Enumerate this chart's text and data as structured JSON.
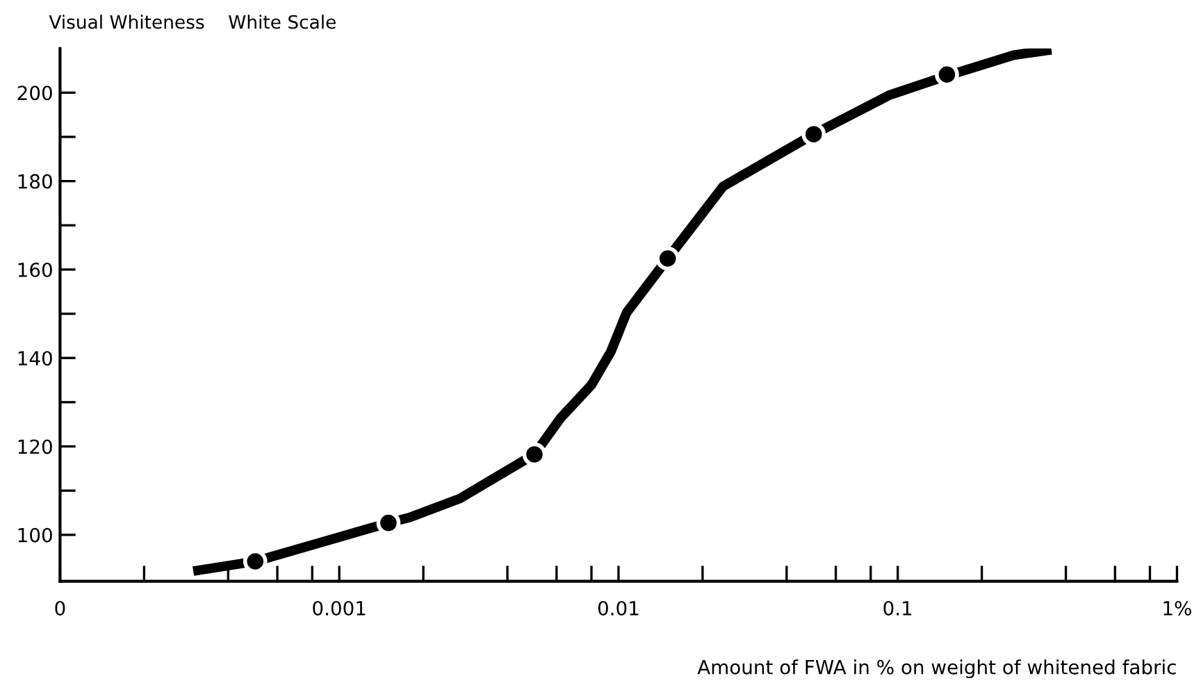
{
  "chart_data": {
    "type": "line",
    "ylabel": "Visual Whiteness    White Scale",
    "xlabel": "Amount of FWA in % on weight of whitened fabric",
    "log": "x",
    "series": [
      {
        "color": "#000000",
        "marker": "none",
        "line_style": "solid",
        "x": [
          0.0003,
          0.0005,
          0.0015,
          0.0018,
          0.0027,
          0.005,
          0.0062,
          0.008,
          0.0094,
          0.0107,
          0.015,
          0.0237,
          0.05,
          0.093,
          0.155,
          0.26,
          0.355
        ],
        "values": [
          91.8,
          94.0,
          102.7,
          104.0,
          108.2,
          118.2,
          126.4,
          133.9,
          141.5,
          150.3,
          162.5,
          178.8,
          190.6,
          199.4,
          204.1,
          208.5,
          209.7
        ]
      },
      {
        "type": "scatter",
        "color": "#000000",
        "marker": "circle",
        "x": [
          0.0005,
          0.0015,
          0.005,
          0.015,
          0.05,
          0.15
        ],
        "values": [
          94,
          102.7,
          118.2,
          162.5,
          190.6,
          204.1
        ]
      }
    ],
    "xlim": [
      0.0001,
      1
    ],
    "xticks": [
      {
        "value": 0.0001,
        "label": "0"
      },
      {
        "value": 0.0002,
        "label": null
      },
      {
        "value": 0.0004,
        "label": null
      },
      {
        "value": 0.0006,
        "label": null
      },
      {
        "value": 0.0008,
        "label": null
      },
      0.001,
      {
        "value": 0.002,
        "label": null
      },
      {
        "value": 0.004,
        "label": null
      },
      {
        "value": 0.006,
        "label": null
      },
      {
        "value": 0.008,
        "label": null
      },
      0.01,
      {
        "value": 0.02,
        "label": null
      },
      {
        "value": 0.04,
        "label": null
      },
      {
        "value": 0.06,
        "label": null
      },
      {
        "value": 0.08,
        "label": null
      },
      0.1,
      {
        "value": 0.2,
        "label": null
      },
      {
        "value": 0.4,
        "label": null
      },
      {
        "value": 0.6,
        "label": null
      },
      {
        "value": 0.8,
        "label": null
      },
      {
        "value": 1,
        "label": "1%"
      }
    ],
    "ylim": [
      89.5,
      210
    ],
    "yticks": [
      100,
      {
        "value": 110,
        "label": null
      },
      120,
      {
        "value": 130,
        "label": null
      },
      140,
      {
        "value": 150,
        "label": null
      },
      160,
      {
        "value": 170,
        "label": null
      },
      180,
      {
        "value": 190,
        "label": null
      },
      200
    ],
    "grid": false,
    "legend": false
  }
}
